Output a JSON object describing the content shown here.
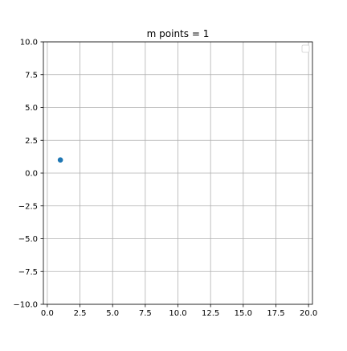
{
  "chart_data": {
    "type": "scatter",
    "title": "m points = 1",
    "xlabel": "",
    "ylabel": "",
    "xlim": [
      -0.3,
      20.3
    ],
    "ylim": [
      -10.0,
      10.0
    ],
    "xticks": [
      0.0,
      2.5,
      5.0,
      7.5,
      10.0,
      12.5,
      15.0,
      17.5,
      20.0
    ],
    "xtick_labels": [
      "0.0",
      "2.5",
      "5.0",
      "7.5",
      "10.0",
      "12.5",
      "15.0",
      "17.5",
      "20.0"
    ],
    "yticks": [
      -10.0,
      -7.5,
      -5.0,
      -2.5,
      0.0,
      2.5,
      5.0,
      7.5,
      10.0
    ],
    "ytick_labels": [
      "−10.0",
      "−7.5",
      "−5.0",
      "−2.5",
      "0.0",
      "2.5",
      "5.0",
      "7.5",
      "10.0"
    ],
    "grid": true,
    "legend": "upper-right",
    "point_color": "#1f77b4",
    "series": [
      {
        "x": [
          1.0
        ],
        "y": [
          1.0
        ]
      }
    ]
  }
}
